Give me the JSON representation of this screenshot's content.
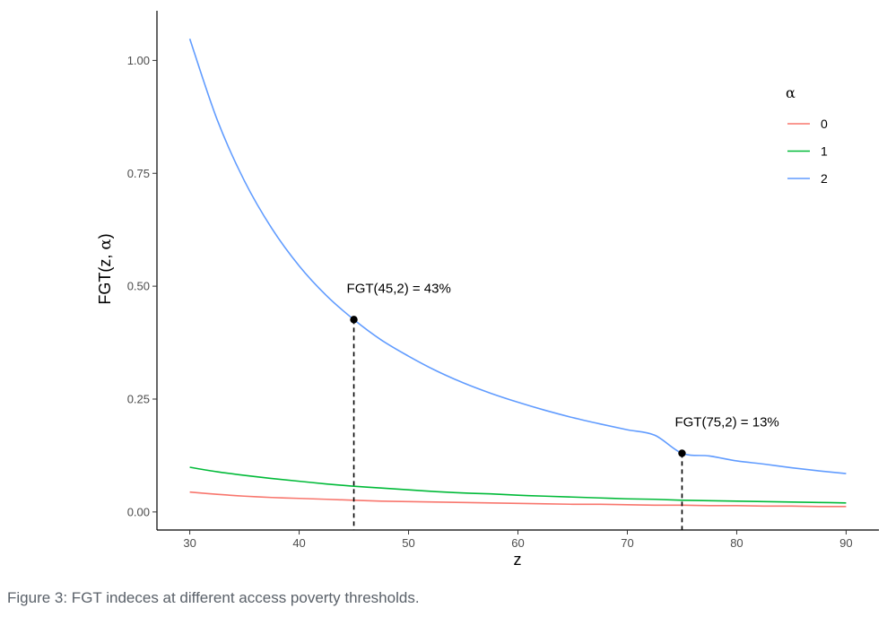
{
  "chart_data": {
    "type": "line",
    "title": "",
    "xlabel": "z",
    "ylabel_prefix": "FGT(z, ",
    "ylabel_alpha": "α",
    "ylabel_suffix": ")",
    "xlim": [
      27,
      93
    ],
    "ylim": [
      -0.04,
      1.11
    ],
    "x_ticks": [
      30,
      40,
      50,
      60,
      70,
      80,
      90
    ],
    "x_tick_labels": [
      "30",
      "40",
      "50",
      "60",
      "70",
      "80",
      "90"
    ],
    "y_ticks": [
      0.0,
      0.25,
      0.5,
      0.75,
      1.0
    ],
    "y_tick_labels": [
      "0.00",
      "0.25",
      "0.50",
      "0.75",
      "1.00"
    ],
    "grid": false,
    "legend": {
      "title": "α",
      "placement": "right"
    },
    "x": [
      30,
      32.5,
      35,
      37.5,
      40,
      42.5,
      45,
      47.5,
      50,
      52.5,
      55,
      57.5,
      60,
      62.5,
      65,
      67.5,
      70,
      72.5,
      75,
      77.5,
      80,
      82.5,
      85,
      87.5,
      90
    ],
    "series": [
      {
        "name": "0",
        "color": "#F8766D",
        "values": [
          0.044,
          0.039,
          0.035,
          0.032,
          0.03,
          0.028,
          0.026,
          0.024,
          0.023,
          0.022,
          0.021,
          0.02,
          0.019,
          0.018,
          0.017,
          0.017,
          0.016,
          0.015,
          0.015,
          0.014,
          0.014,
          0.013,
          0.013,
          0.012,
          0.012
        ]
      },
      {
        "name": "1",
        "color": "#00BA38",
        "values": [
          0.099,
          0.089,
          0.081,
          0.074,
          0.068,
          0.062,
          0.057,
          0.053,
          0.049,
          0.045,
          0.042,
          0.04,
          0.037,
          0.035,
          0.033,
          0.031,
          0.029,
          0.028,
          0.026,
          0.025,
          0.024,
          0.023,
          0.022,
          0.021,
          0.02
        ]
      },
      {
        "name": "2",
        "color": "#619CFF",
        "values": [
          1.048,
          0.869,
          0.733,
          0.628,
          0.545,
          0.479,
          0.426,
          0.381,
          0.345,
          0.313,
          0.286,
          0.263,
          0.243,
          0.225,
          0.209,
          0.195,
          0.182,
          0.17,
          0.13,
          0.124,
          0.113,
          0.106,
          0.098,
          0.091,
          0.085
        ]
      }
    ],
    "annotations": [
      {
        "x": 45,
        "y": 0.426,
        "label": "FGT(45,2) = 43%"
      },
      {
        "x": 75,
        "y": 0.13,
        "label": "FGT(75,2) = 13%"
      }
    ]
  },
  "caption": "Figure 3: FGT indeces at different access poverty thresholds."
}
